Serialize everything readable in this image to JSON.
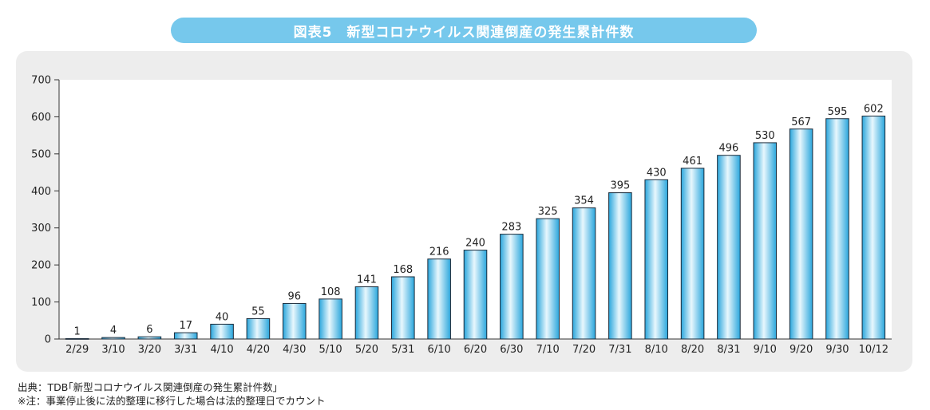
{
  "title": "図表5　新型コロナウイルス関連倒産の発生累計件数",
  "footer": {
    "source": "出典：TDB｢新型コロナウイルス関連倒産の発生累計件数｣",
    "note": "※注：事業停止後に法的整理に移行した場合は法的整理日でカウント"
  },
  "colors": {
    "title_bg": "#76c8ec",
    "bar_edge": "#1b2b3a",
    "bar_light": "#e8f7fd",
    "bar_dark": "#2aa6dc"
  },
  "chart_data": {
    "type": "bar",
    "categories": [
      "2/29",
      "3/10",
      "3/20",
      "3/31",
      "4/10",
      "4/20",
      "4/30",
      "5/10",
      "5/20",
      "5/31",
      "6/10",
      "6/20",
      "6/30",
      "7/10",
      "7/20",
      "7/31",
      "8/10",
      "8/20",
      "8/31",
      "9/10",
      "9/20",
      "9/30",
      "10/12"
    ],
    "values": [
      1,
      4,
      6,
      17,
      40,
      55,
      96,
      108,
      141,
      168,
      216,
      240,
      283,
      325,
      354,
      395,
      430,
      461,
      496,
      530,
      567,
      595,
      602
    ],
    "ylim": [
      0,
      700
    ],
    "yticks": [
      0,
      100,
      200,
      300,
      400,
      500,
      600,
      700
    ],
    "grid": false,
    "legend": "none",
    "data_labels": true
  }
}
